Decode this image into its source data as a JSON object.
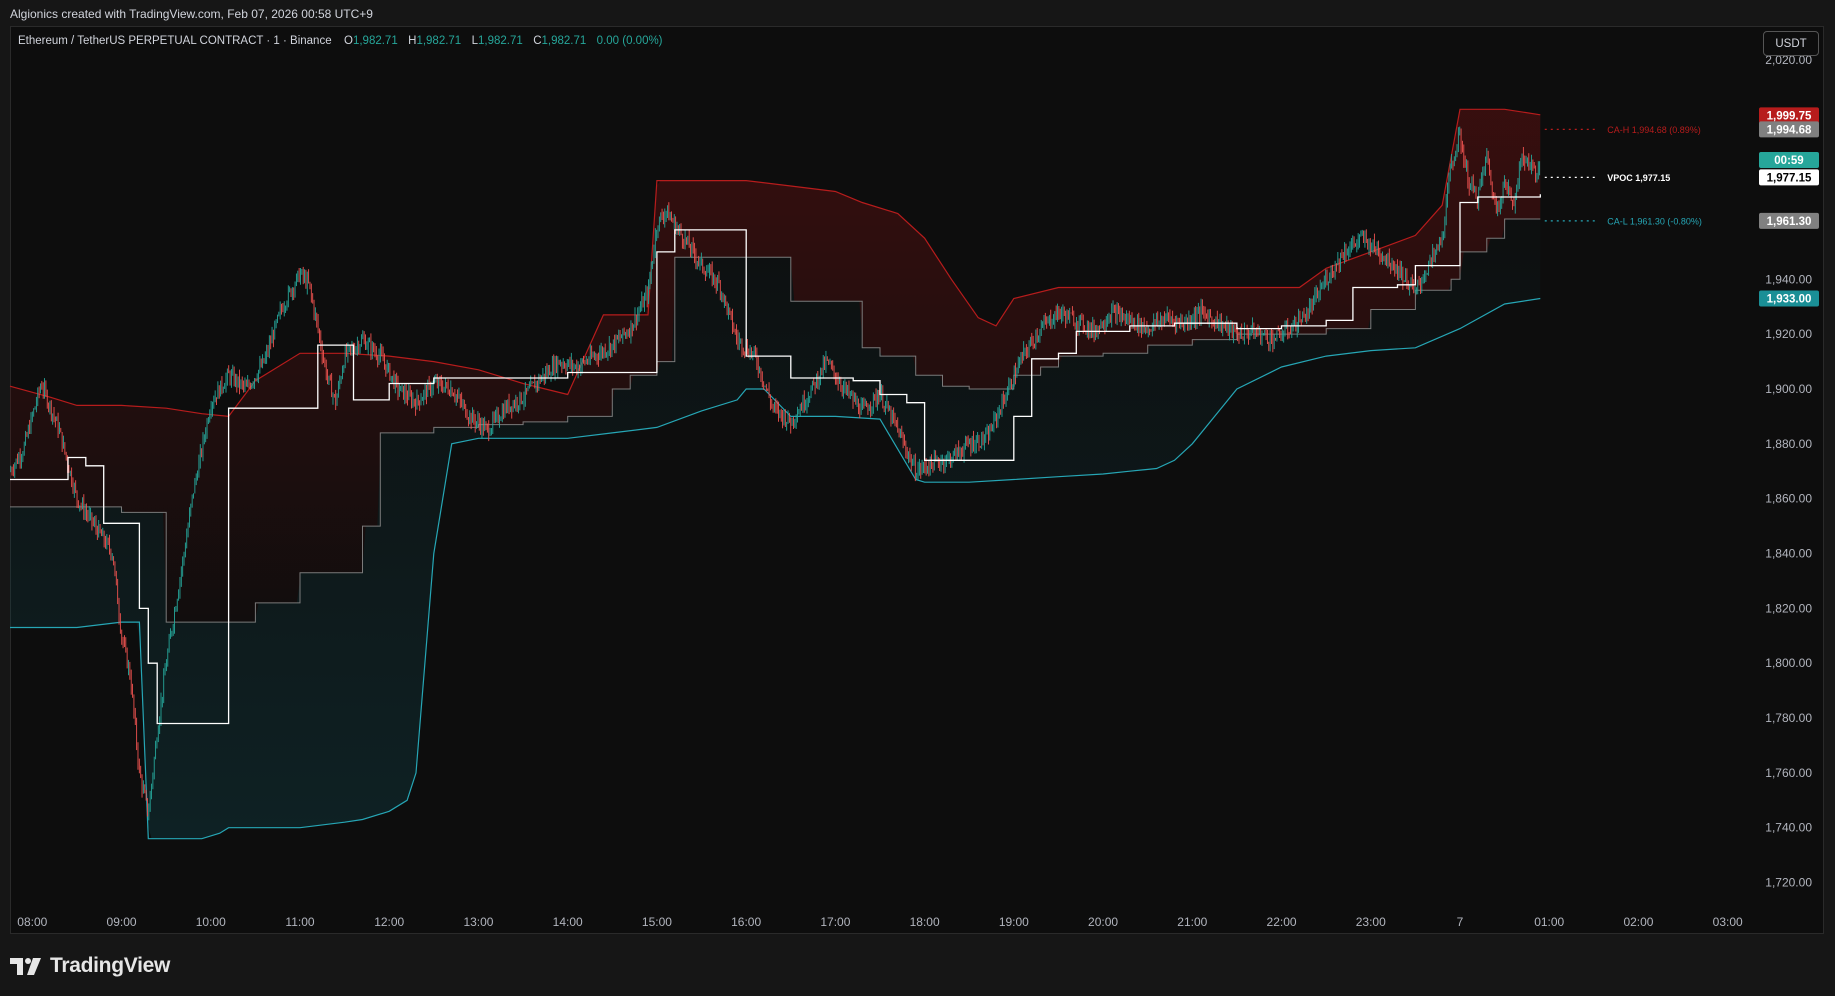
{
  "header": {
    "credit": "Algionics created with TradingView.com, Feb 07, 2026 00:58 UTC+9"
  },
  "legend": {
    "symbol": "Ethereum / TetherUS PERPETUAL CONTRACT · 1 · Binance",
    "o_label": "O",
    "o_value": "1,982.71",
    "h_label": "H",
    "h_value": "1,982.71",
    "l_label": "L",
    "l_value": "1,982.71",
    "c_label": "C",
    "c_value": "1,982.71",
    "change": "0.00 (0.00%)"
  },
  "currency_button": "USDT",
  "footer": {
    "brand": "TradingView",
    "logo_icon": "tradingview-logo-icon"
  },
  "colors": {
    "background": "#0d0d0d",
    "bull": "#26a69a",
    "bear": "#ef5350",
    "upper_band": "#b71c1c",
    "lower_band": "#26a6b5",
    "vpoc": "#ffffff",
    "mid": "#7a7a7a"
  },
  "chart_data": {
    "type": "line",
    "title": "",
    "ylim": [
      1710,
      2032
    ],
    "y_ticks": [
      "2,020.00",
      "1,940.00",
      "1,920.00",
      "1,900.00",
      "1,880.00",
      "1,860.00",
      "1,840.00",
      "1,820.00",
      "1,800.00",
      "1,780.00",
      "1,760.00",
      "1,740.00",
      "1,720.00"
    ],
    "y_tick_values": [
      2020,
      1940,
      1920,
      1900,
      1880,
      1860,
      1840,
      1820,
      1800,
      1780,
      1760,
      1740,
      1720
    ],
    "x_ticks": [
      "08:00",
      "09:00",
      "10:00",
      "11:00",
      "12:00",
      "13:00",
      "14:00",
      "15:00",
      "16:00",
      "17:00",
      "18:00",
      "19:00",
      "20:00",
      "21:00",
      "22:00",
      "23:00",
      "7",
      "01:00",
      "02:00",
      "03:00"
    ],
    "x_tick_hours": [
      8,
      9,
      10,
      11,
      12,
      13,
      14,
      15,
      16,
      17,
      18,
      19,
      20,
      21,
      22,
      23,
      24,
      25,
      26,
      27
    ],
    "xlim": [
      7.75,
      27.25
    ],
    "series": [
      {
        "name": "CA-H",
        "color": "#b71c1c",
        "x": [
          7.75,
          8.2,
          8.5,
          9.0,
          9.5,
          9.9,
          10.2,
          10.5,
          11.0,
          11.5,
          12.0,
          12.5,
          13.0,
          13.5,
          14.0,
          14.4,
          14.7,
          14.9,
          15.0,
          15.5,
          16.0,
          16.5,
          17.0,
          17.3,
          17.7,
          18.0,
          18.3,
          18.6,
          18.8,
          19.0,
          19.5,
          20.0,
          20.5,
          21.0,
          21.5,
          22.0,
          22.2,
          22.5,
          23.0,
          23.5,
          23.8,
          24.0,
          24.5,
          24.9
        ],
        "y": [
          1901,
          1897,
          1894,
          1894,
          1893,
          1891,
          1890,
          1903,
          1913,
          1913,
          1912,
          1910,
          1907,
          1902,
          1898,
          1927,
          1927,
          1927,
          1976,
          1976,
          1976,
          1974,
          1972,
          1968,
          1964,
          1955,
          1940,
          1926,
          1923,
          1933,
          1937,
          1937,
          1937,
          1937,
          1937,
          1937,
          1937,
          1944,
          1950,
          1956,
          1967,
          2002,
          2002,
          2000
        ]
      },
      {
        "name": "CA-L",
        "color": "#26a6b5",
        "x": [
          7.75,
          8.2,
          8.5,
          9.0,
          9.2,
          9.3,
          9.5,
          9.9,
          10.1,
          10.2,
          10.5,
          11.0,
          11.5,
          11.7,
          12.0,
          12.2,
          12.3,
          12.5,
          12.7,
          13.0,
          13.5,
          14.0,
          14.5,
          15.0,
          15.5,
          15.9,
          16.0,
          16.2,
          16.5,
          17.0,
          17.5,
          17.9,
          18.0,
          18.5,
          19.0,
          19.5,
          20.0,
          20.3,
          20.6,
          20.8,
          21.0,
          21.3,
          21.5,
          22.0,
          22.5,
          23.0,
          23.5,
          24.0,
          24.5,
          24.9
        ],
        "y": [
          1813,
          1813,
          1813,
          1815,
          1815,
          1736,
          1736,
          1736,
          1738,
          1740,
          1740,
          1740,
          1742,
          1743,
          1746,
          1750,
          1760,
          1840,
          1880,
          1882,
          1882,
          1882,
          1884,
          1886,
          1892,
          1896,
          1900,
          1900,
          1890,
          1890,
          1889,
          1867,
          1866,
          1866,
          1867,
          1868,
          1869,
          1870,
          1871,
          1874,
          1880,
          1892,
          1900,
          1908,
          1912,
          1914,
          1915,
          1922,
          1931,
          1933
        ]
      },
      {
        "name": "Mid",
        "color": "#7a7a7a",
        "x": [
          7.75,
          8.2,
          8.5,
          9.0,
          9.3,
          9.5,
          9.9,
          10.2,
          10.5,
          10.8,
          11.0,
          11.5,
          11.7,
          11.9,
          12.2,
          12.5,
          13.0,
          13.5,
          14.0,
          14.5,
          14.7,
          15.0,
          15.2,
          15.5,
          16.0,
          16.5,
          17.0,
          17.3,
          17.5,
          17.9,
          18.2,
          18.5,
          18.8,
          19.0,
          19.3,
          19.5,
          20.0,
          20.5,
          21.0,
          21.5,
          22.0,
          22.5,
          22.8,
          23.0,
          23.5,
          23.9,
          24.0,
          24.3,
          24.5,
          24.9
        ],
        "y": [
          1857,
          1857,
          1857,
          1855,
          1855,
          1815,
          1815,
          1815,
          1822,
          1822,
          1833,
          1833,
          1850,
          1884,
          1884,
          1886,
          1887,
          1888,
          1890,
          1900,
          1905,
          1910,
          1948,
          1948,
          1948,
          1932,
          1932,
          1915,
          1912,
          1905,
          1901,
          1900,
          1900,
          1905,
          1908,
          1912,
          1913,
          1916,
          1918,
          1920,
          1920,
          1922,
          1922,
          1929,
          1936,
          1940,
          1950,
          1955,
          1962,
          1962
        ]
      },
      {
        "name": "VPOC",
        "color": "#ffffff",
        "x": [
          7.75,
          8.0,
          8.3,
          8.4,
          8.6,
          8.8,
          9.0,
          9.2,
          9.3,
          9.4,
          9.8,
          10.1,
          10.2,
          10.5,
          10.8,
          11.0,
          11.2,
          11.5,
          11.6,
          12.0,
          12.3,
          12.5,
          12.8,
          13.0,
          13.2,
          13.5,
          13.8,
          14.0,
          14.2,
          14.5,
          14.8,
          15.0,
          15.2,
          15.5,
          15.8,
          16.0,
          16.2,
          16.5,
          16.8,
          17.0,
          17.2,
          17.5,
          17.8,
          18.0,
          18.3,
          18.6,
          18.8,
          19.0,
          19.2,
          19.5,
          19.7,
          20.0,
          20.3,
          20.5,
          20.8,
          21.0,
          21.3,
          21.5,
          21.8,
          22.0,
          22.3,
          22.5,
          22.8,
          23.0,
          23.3,
          23.5,
          23.8,
          24.0,
          24.2,
          24.5,
          24.9
        ],
        "y": [
          1867,
          1867,
          1867,
          1875,
          1872,
          1851,
          1851,
          1820,
          1800,
          1778,
          1778,
          1778,
          1893,
          1893,
          1893,
          1893,
          1916,
          1916,
          1896,
          1902,
          1902,
          1904,
          1904,
          1904,
          1904,
          1904,
          1904,
          1906,
          1906,
          1906,
          1906,
          1950,
          1958,
          1958,
          1958,
          1912,
          1912,
          1904,
          1904,
          1904,
          1903,
          1898,
          1895,
          1874,
          1874,
          1874,
          1874,
          1890,
          1911,
          1913,
          1921,
          1921,
          1923,
          1923,
          1924,
          1924,
          1924,
          1922,
          1922,
          1923,
          1923,
          1925,
          1937,
          1937,
          1938,
          1945,
          1945,
          1968,
          1970,
          1970,
          1971
        ]
      },
      {
        "name": "Price",
        "color": "#26a69a",
        "x": [
          7.75,
          7.9,
          8.1,
          8.3,
          8.5,
          8.7,
          8.9,
          9.0,
          9.1,
          9.2,
          9.3,
          9.4,
          9.5,
          9.6,
          9.7,
          9.8,
          9.9,
          10.0,
          10.2,
          10.4,
          10.6,
          10.8,
          11.0,
          11.1,
          11.2,
          11.3,
          11.4,
          11.5,
          11.7,
          11.9,
          12.1,
          12.3,
          12.5,
          12.7,
          12.9,
          13.1,
          13.3,
          13.5,
          13.7,
          13.9,
          14.1,
          14.3,
          14.5,
          14.7,
          14.9,
          15.0,
          15.1,
          15.3,
          15.5,
          15.7,
          15.9,
          16.1,
          16.3,
          16.5,
          16.7,
          16.9,
          17.1,
          17.3,
          17.5,
          17.7,
          17.9,
          18.1,
          18.3,
          18.5,
          18.7,
          18.9,
          19.1,
          19.3,
          19.5,
          19.7,
          19.9,
          20.1,
          20.3,
          20.5,
          20.7,
          20.9,
          21.1,
          21.3,
          21.5,
          21.7,
          21.9,
          22.1,
          22.3,
          22.5,
          22.7,
          22.9,
          23.1,
          23.3,
          23.5,
          23.6,
          23.7,
          23.8,
          23.9,
          24.0,
          24.1,
          24.2,
          24.3,
          24.4,
          24.5,
          24.6,
          24.7,
          24.9
        ],
        "y": [
          1870,
          1878,
          1902,
          1885,
          1860,
          1850,
          1840,
          1810,
          1795,
          1760,
          1745,
          1775,
          1800,
          1820,
          1840,
          1862,
          1878,
          1895,
          1905,
          1900,
          1910,
          1930,
          1942,
          1938,
          1922,
          1905,
          1895,
          1912,
          1918,
          1912,
          1900,
          1895,
          1902,
          1900,
          1890,
          1885,
          1893,
          1897,
          1904,
          1910,
          1908,
          1912,
          1916,
          1922,
          1935,
          1960,
          1965,
          1955,
          1945,
          1938,
          1918,
          1912,
          1893,
          1888,
          1898,
          1910,
          1900,
          1892,
          1898,
          1885,
          1870,
          1873,
          1875,
          1880,
          1882,
          1897,
          1912,
          1922,
          1928,
          1925,
          1921,
          1928,
          1925,
          1922,
          1926,
          1924,
          1928,
          1924,
          1920,
          1921,
          1918,
          1922,
          1928,
          1940,
          1950,
          1955,
          1950,
          1944,
          1935,
          1942,
          1948,
          1955,
          1982,
          1992,
          1975,
          1970,
          1985,
          1965,
          1975,
          1968,
          1985,
          1978
        ]
      }
    ],
    "price_labels": [
      {
        "name": "CA-H upper",
        "value": 1999.75,
        "text": "1,999.75",
        "bg": "#b71c1c",
        "fg": "#ffffff"
      },
      {
        "name": "CA-H",
        "value": 1994.68,
        "text": "1,994.68",
        "bg": "#808080",
        "fg": "#ffffff"
      },
      {
        "name": "countdown",
        "value": 1983.5,
        "text": "00:59",
        "bg": "#26a69a",
        "fg": "#ffffff"
      },
      {
        "name": "VPOC",
        "value": 1977.15,
        "text": "1,977.15",
        "bg": "#ffffff",
        "fg": "#000000"
      },
      {
        "name": "CA-L",
        "value": 1961.3,
        "text": "1,961.30",
        "bg": "#808080",
        "fg": "#ffffff"
      },
      {
        "name": "lower band",
        "value": 1933.0,
        "text": "1,933.00",
        "bg": "#1a8f96",
        "fg": "#ffffff"
      }
    ],
    "annotations": [
      {
        "text": "CA-H  1,994.68 (0.89%)",
        "value": 1994.68,
        "color": "#b71c1c"
      },
      {
        "text": "VPOC  1,977.15",
        "value": 1977.15,
        "color": "#ffffff"
      },
      {
        "text": "CA-L  1,961.30 (-0.80%)",
        "value": 1961.3,
        "color": "#26a6b5"
      }
    ],
    "grid": false,
    "legend": "top-left"
  }
}
